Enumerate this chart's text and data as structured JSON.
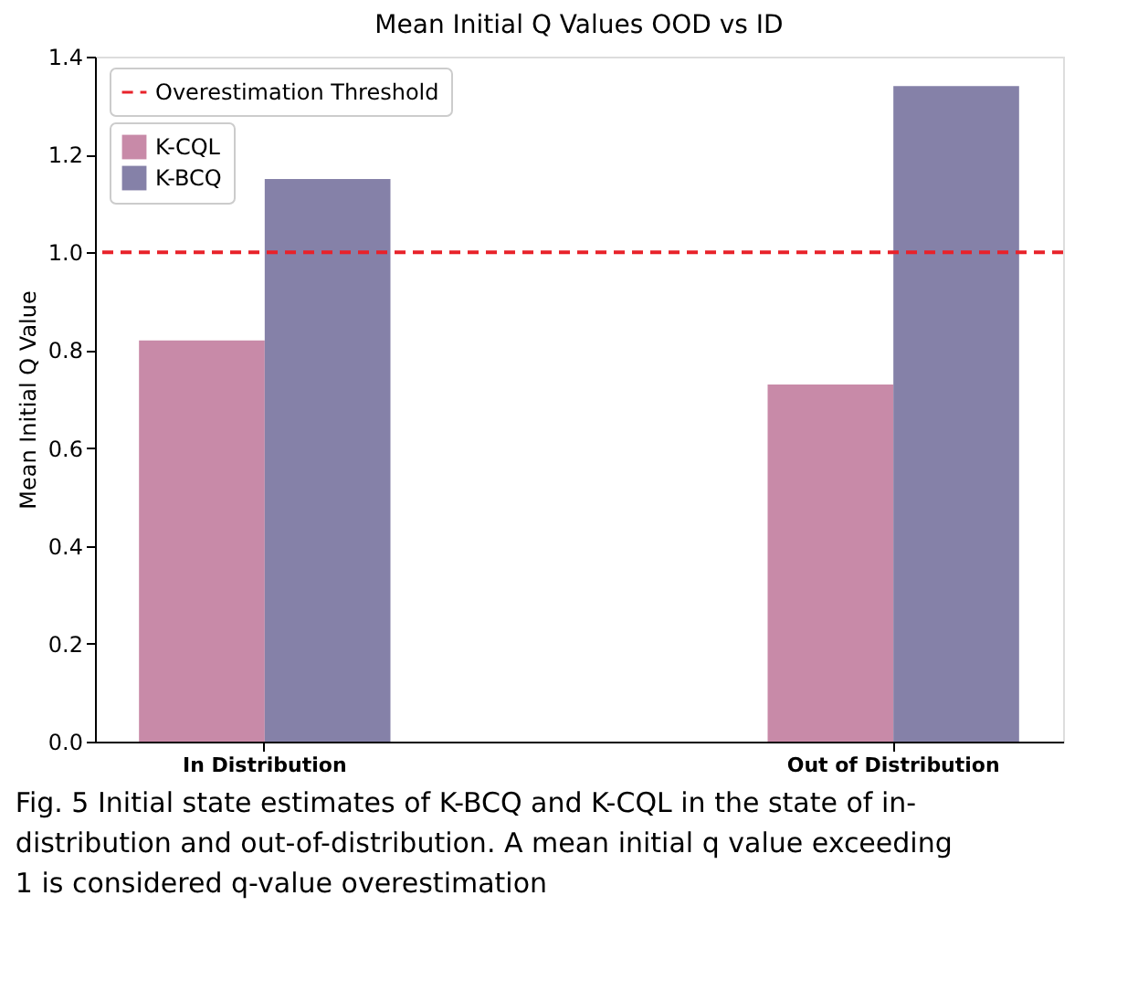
{
  "chart_data": {
    "type": "bar",
    "title": "Mean Initial Q Values OOD vs ID",
    "ylabel": "Mean Initial Q Value",
    "categories": [
      "In Distribution",
      "Out of Distribution"
    ],
    "series": [
      {
        "name": "K-CQL",
        "color": "#c88aa8",
        "values": [
          0.82,
          0.73
        ]
      },
      {
        "name": "K-BCQ",
        "color": "#8581a8",
        "values": [
          1.15,
          1.34
        ]
      }
    ],
    "ylim": [
      0.0,
      1.4
    ],
    "yticks": [
      {
        "value": 0,
        "label": "0.0"
      },
      0.2,
      0.4,
      0.6,
      0.8,
      {
        "value": 1,
        "label": "1.0"
      },
      1.2,
      1.4
    ],
    "ref_lines": [
      {
        "axis": "y",
        "value": 1.0,
        "label": "Overestimation Threshold",
        "color": "#e8222a",
        "line_style": "dashed"
      }
    ],
    "legend": "top left",
    "grid": false,
    "annotations": [
      "Fig. 5  Initial state estimates of K-BCQ and K-CQL in the state of in-distribution and out-of-distribution. A mean initial q value exceeding 1 is considered q-value overestimation"
    ]
  }
}
